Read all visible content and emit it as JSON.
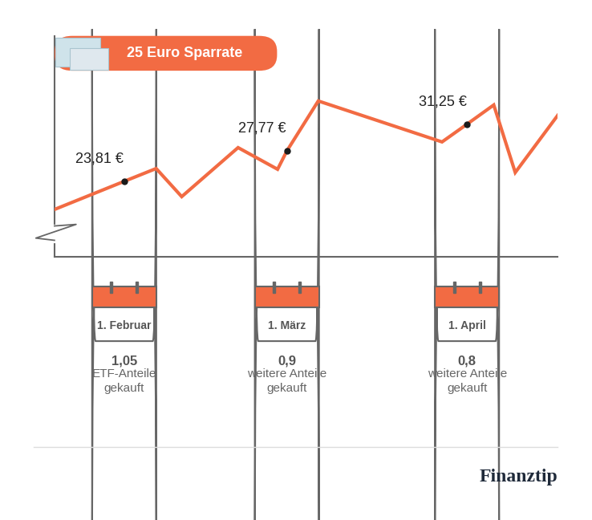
{
  "chart_data": {
    "type": "line",
    "x": [
      20,
      32,
      37.5,
      41.9,
      51.6,
      58.4,
      60,
      65.4,
      86.7,
      91,
      95.6,
      99.3,
      106.6
    ],
    "values": [
      20.15,
      23.81,
      25.48,
      21.82,
      28.2,
      25.38,
      27.77,
      34.27,
      28.94,
      31.25,
      33.75,
      24.96,
      32.39
    ],
    "color": "#f26b43",
    "xlim": [
      20,
      106.6
    ],
    "ylim": [
      13.98,
      42.74
    ],
    "xticks": [
      {
        "value": 32,
        "label": "1. Februar"
      },
      {
        "value": 60,
        "label": "1. März"
      },
      {
        "value": 91,
        "label": "1. April"
      }
    ],
    "yticks": [],
    "tick_labels": "x",
    "grid": false,
    "flag": "25 Euro Sparrate",
    "purchases": [
      {
        "x": 32,
        "value": 23.81,
        "value_label": "23,81 €",
        "shares": "1,05",
        "text": "ETF-Anteile\ngekauft"
      },
      {
        "x": 60,
        "value": 27.77,
        "value_label": "27,77 €",
        "shares": "0,9",
        "text": "weitere Anteile\ngekauft"
      },
      {
        "x": 91,
        "value": 31.25,
        "value_label": "31,25 €",
        "shares": "0,8",
        "text": "weitere Anteile\ngekauft"
      }
    ],
    "source": "Finanztip"
  }
}
